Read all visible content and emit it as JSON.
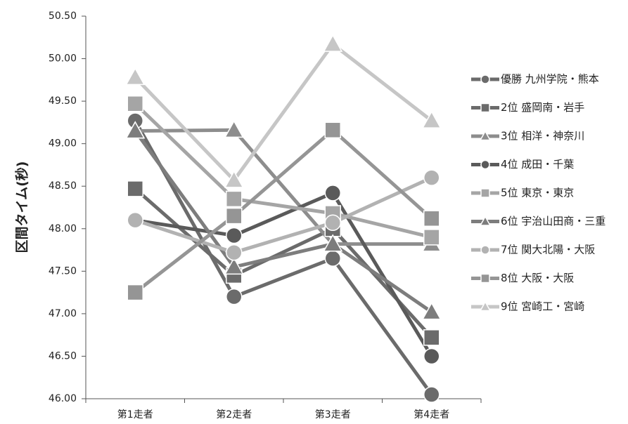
{
  "chart_data": {
    "type": "line",
    "title": "",
    "xlabel": "",
    "ylabel": "区間タイム(秒)",
    "ylim": [
      46.0,
      50.5
    ],
    "yticks": [
      "46.00",
      "46.50",
      "47.00",
      "47.50",
      "48.00",
      "48.50",
      "49.00",
      "49.50",
      "50.00",
      "50.50"
    ],
    "categories": [
      "第1走者",
      "第2走者",
      "第3走者",
      "第4走者"
    ],
    "grid": false,
    "legend_position": "right",
    "series": [
      {
        "name": "優勝 九州学院・熊本",
        "marker": "circle",
        "color": "#6b6b6b",
        "values": [
          49.27,
          47.2,
          47.65,
          46.05
        ]
      },
      {
        "name": "2位 盛岡南・岩手",
        "marker": "square",
        "color": "#6b6b6b",
        "values": [
          48.47,
          47.45,
          48.0,
          46.72
        ]
      },
      {
        "name": "3位 相洋・神奈川",
        "marker": "triangle",
        "color": "#8d8d8d",
        "values": [
          49.15,
          49.16,
          47.82,
          47.82
        ]
      },
      {
        "name": "4位 成田・千葉",
        "marker": "circle",
        "color": "#5a5a5a",
        "values": [
          48.1,
          47.92,
          48.42,
          46.5
        ]
      },
      {
        "name": "5位 東京・東京",
        "marker": "square",
        "color": "#a5a5a5",
        "values": [
          49.47,
          48.35,
          48.18,
          47.9
        ]
      },
      {
        "name": "6位 宇治山田商・三重",
        "marker": "triangle",
        "color": "#7d7d7d",
        "values": [
          49.15,
          47.55,
          47.82,
          47.02
        ]
      },
      {
        "name": "7位 関大北陽・大阪",
        "marker": "circle",
        "color": "#b2b2b2",
        "values": [
          48.1,
          47.72,
          48.07,
          48.6
        ]
      },
      {
        "name": "8位 大阪・大阪",
        "marker": "square",
        "color": "#959595",
        "values": [
          47.25,
          48.15,
          49.16,
          48.12
        ]
      },
      {
        "name": "9位 宮崎工・宮崎",
        "marker": "triangle",
        "color": "#c6c6c6",
        "values": [
          49.78,
          48.57,
          50.17,
          49.27
        ]
      }
    ]
  }
}
